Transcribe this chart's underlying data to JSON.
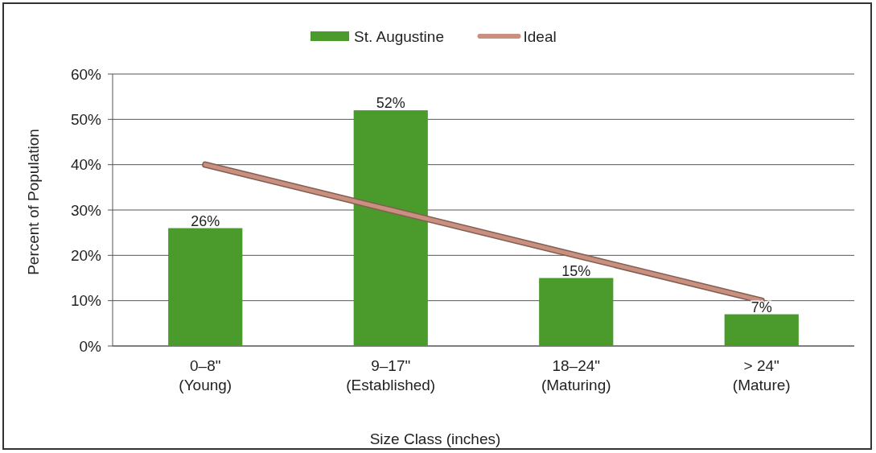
{
  "chart_data": {
    "type": "bar",
    "xlabel": "Size Class (inches)",
    "ylabel": "Percent of Population",
    "categories": [
      "0–8\"\n(Young)",
      "9–17\"\n(Established)",
      "18–24\"\n(Maturing)",
      "> 24\"\n(Mature)"
    ],
    "series": [
      {
        "name": "St. Augustine",
        "color": "#4a9a2c",
        "values": [
          26,
          52,
          15,
          7
        ],
        "value_labels": [
          "26%",
          "52%",
          "15%",
          "7%"
        ]
      },
      {
        "name": "Ideal",
        "type": "line",
        "color": "#c99080",
        "values": [
          40,
          30,
          20,
          10
        ]
      }
    ],
    "ylim": [
      0,
      60
    ],
    "yticks": [
      {
        "value": 0,
        "label": "0%"
      },
      {
        "value": 10,
        "label": "10%"
      },
      {
        "value": 20,
        "label": "20%"
      },
      {
        "value": 30,
        "label": "30%"
      },
      {
        "value": 40,
        "label": "40%"
      },
      {
        "value": 50,
        "label": "50%"
      },
      {
        "value": 60,
        "label": "60%"
      }
    ],
    "grid": "y",
    "legend": "top"
  }
}
